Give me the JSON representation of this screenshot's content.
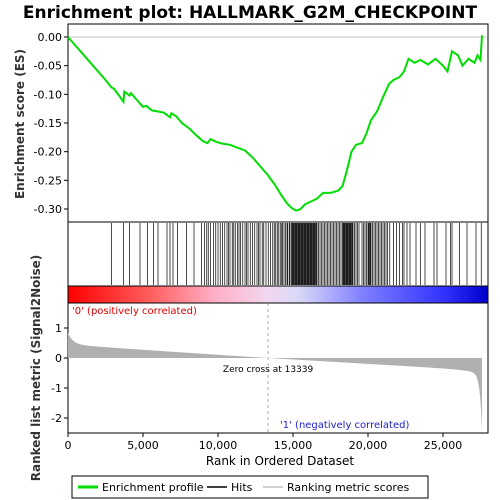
{
  "chart_data": {
    "type": "line",
    "title": "Enrichment plot: HALLMARK_G2M_CHECKPOINT",
    "ylabel_top": "Enrichment score (ES)",
    "ylabel_bottom": "Ranked list metric (Signal2Noise)",
    "xlabel": "Rank in Ordered Dataset",
    "xlim": [
      0,
      28000
    ],
    "es_ylim": [
      -0.33,
      0.02
    ],
    "metric_ylim": [
      -2.5,
      1.5
    ],
    "x_ticks": [
      0,
      5000,
      10000,
      15000,
      20000,
      25000
    ],
    "x_tick_labels": [
      "0",
      "5,000",
      "10,000",
      "15,000",
      "20,000",
      "25,000"
    ],
    "es_ticks": [
      0.0,
      -0.05,
      -0.1,
      -0.15,
      -0.2,
      -0.25,
      -0.3
    ],
    "es_tick_labels": [
      "0.00",
      "-0.05",
      "-0.10",
      "-0.15",
      "-0.20",
      "-0.25",
      "-0.30"
    ],
    "metric_ticks": [
      1,
      0,
      -1,
      -2
    ],
    "metric_tick_labels": [
      "1",
      "0",
      "-1",
      "-2"
    ],
    "zero_cross": 13339,
    "zero_cross_label": "Zero cross at 13339",
    "pos_label": "'0' (positively correlated)",
    "neg_label": "'1' (negatively correlated)",
    "total_rank": 27600,
    "es_curve": [
      [
        0,
        0.0
      ],
      [
        500,
        -0.015
      ],
      [
        1000,
        -0.03
      ],
      [
        1500,
        -0.045
      ],
      [
        2000,
        -0.06
      ],
      [
        2500,
        -0.075
      ],
      [
        2900,
        -0.088
      ],
      [
        3050,
        -0.09
      ],
      [
        3400,
        -0.102
      ],
      [
        3700,
        -0.113
      ],
      [
        3750,
        -0.095
      ],
      [
        4100,
        -0.102
      ],
      [
        4200,
        -0.098
      ],
      [
        4600,
        -0.11
      ],
      [
        5000,
        -0.122
      ],
      [
        5200,
        -0.12
      ],
      [
        5600,
        -0.128
      ],
      [
        6000,
        -0.13
      ],
      [
        6400,
        -0.132
      ],
      [
        6800,
        -0.14
      ],
      [
        6900,
        -0.133
      ],
      [
        7200,
        -0.138
      ],
      [
        7600,
        -0.15
      ],
      [
        8100,
        -0.16
      ],
      [
        8500,
        -0.17
      ],
      [
        9000,
        -0.182
      ],
      [
        9300,
        -0.185
      ],
      [
        9500,
        -0.178
      ],
      [
        9900,
        -0.183
      ],
      [
        10300,
        -0.186
      ],
      [
        10800,
        -0.188
      ],
      [
        11300,
        -0.193
      ],
      [
        11800,
        -0.198
      ],
      [
        12300,
        -0.21
      ],
      [
        12800,
        -0.225
      ],
      [
        13300,
        -0.24
      ],
      [
        13800,
        -0.258
      ],
      [
        14200,
        -0.275
      ],
      [
        14600,
        -0.29
      ],
      [
        14900,
        -0.298
      ],
      [
        15200,
        -0.303
      ],
      [
        15500,
        -0.3
      ],
      [
        15800,
        -0.292
      ],
      [
        16200,
        -0.287
      ],
      [
        16600,
        -0.282
      ],
      [
        17000,
        -0.272
      ],
      [
        17500,
        -0.272
      ],
      [
        18000,
        -0.268
      ],
      [
        18300,
        -0.26
      ],
      [
        18600,
        -0.232
      ],
      [
        18900,
        -0.2
      ],
      [
        19200,
        -0.188
      ],
      [
        19600,
        -0.185
      ],
      [
        19900,
        -0.168
      ],
      [
        20200,
        -0.145
      ],
      [
        20600,
        -0.13
      ],
      [
        21000,
        -0.105
      ],
      [
        21400,
        -0.082
      ],
      [
        21700,
        -0.075
      ],
      [
        22100,
        -0.07
      ],
      [
        22400,
        -0.06
      ],
      [
        22700,
        -0.038
      ],
      [
        23100,
        -0.045
      ],
      [
        23500,
        -0.04
      ],
      [
        24000,
        -0.048
      ],
      [
        24500,
        -0.038
      ],
      [
        25000,
        -0.05
      ],
      [
        25300,
        -0.06
      ],
      [
        25600,
        -0.025
      ],
      [
        26000,
        -0.032
      ],
      [
        26300,
        -0.05
      ],
      [
        26700,
        -0.038
      ],
      [
        27100,
        -0.045
      ],
      [
        27300,
        -0.032
      ],
      [
        27500,
        -0.04
      ],
      [
        27600,
        0.003
      ]
    ],
    "hits": [
      2900,
      3700,
      4100,
      4800,
      5300,
      5700,
      6000,
      6600,
      6800,
      7000,
      7300,
      7900,
      8400,
      8900,
      9100,
      9250,
      9350,
      9500,
      9700,
      9850,
      10000,
      10150,
      10300,
      10450,
      10600,
      10700,
      10800,
      10950,
      11050,
      11150,
      11300,
      11400,
      11500,
      11650,
      11800,
      11900,
      12000,
      12150,
      12300,
      12450,
      12600,
      12700,
      12800,
      12950,
      13050,
      13200,
      13350,
      13500,
      13650,
      13750,
      13850,
      13950,
      14050,
      14150,
      14250,
      14300,
      14400,
      14500,
      14600,
      14650,
      14750,
      14800,
      14900,
      14950,
      15000,
      15050,
      15100,
      15150,
      15200,
      15250,
      15300,
      15350,
      15400,
      15450,
      15500,
      15550,
      15600,
      15650,
      15700,
      15750,
      15800,
      15850,
      15900,
      15950,
      16000,
      16050,
      16100,
      16150,
      16200,
      16250,
      16300,
      16350,
      16400,
      16450,
      16500,
      16550,
      16600,
      16700,
      16800,
      16900,
      17000,
      17100,
      17200,
      17300,
      17400,
      17500,
      17600,
      17700,
      17800,
      17900,
      18000,
      18100,
      18200,
      18300,
      18350,
      18400,
      18450,
      18500,
      18550,
      18600,
      18650,
      18700,
      18750,
      18800,
      18850,
      18900,
      18950,
      19000,
      19100,
      19200,
      19300,
      19400,
      19600,
      19700,
      19800,
      19900,
      20000,
      20050,
      20100,
      20150,
      20200,
      20300,
      20400,
      20500,
      20600,
      20700,
      20800,
      20900,
      21000,
      21100,
      21200,
      21300,
      21450,
      21700,
      21900,
      22100,
      22300,
      22400,
      22600,
      22800,
      23200,
      23500,
      23800,
      24400,
      24600,
      25200,
      25500,
      25600,
      26100,
      26600,
      27200,
      27550
    ]
  },
  "legend": {
    "items": [
      {
        "label": "Enrichment profile",
        "color": "#00dd00"
      },
      {
        "label": "Hits",
        "color": "#000000"
      },
      {
        "label": "Ranking metric scores",
        "color": "#c0c0c0"
      }
    ]
  }
}
